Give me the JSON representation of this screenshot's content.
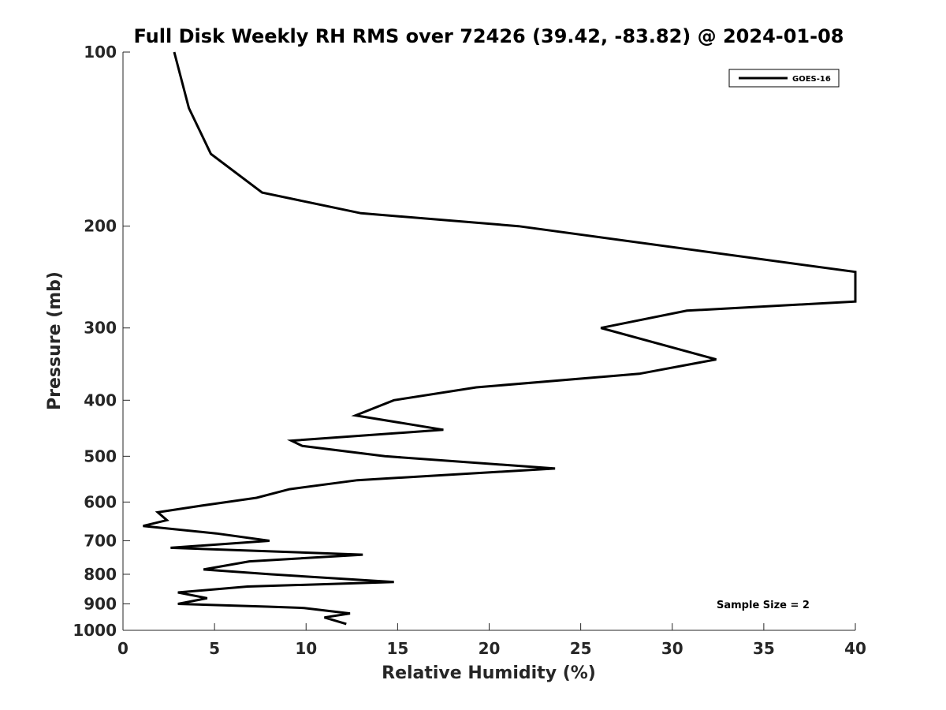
{
  "chart_data": {
    "type": "line",
    "title": "Full Disk Weekly RH RMS over 72426 (39.42, -83.82) @ 2024-01-08",
    "xlabel": "Relative Humidity (%)",
    "ylabel": "Pressure (mb)",
    "xlim": [
      0,
      40
    ],
    "ylim": [
      100,
      1000
    ],
    "y_scale": "log",
    "y_inverted": true,
    "grid": false,
    "legend_position": "top-right",
    "x_ticks": [
      0,
      5,
      10,
      15,
      20,
      25,
      30,
      35,
      40
    ],
    "y_ticks": [
      100,
      200,
      300,
      400,
      500,
      600,
      700,
      800,
      900,
      1000
    ],
    "annotation": "Sample Size = 2",
    "series": [
      {
        "name": "GOES-16",
        "color": "#000000",
        "points": [
          [
            2.8,
            100
          ],
          [
            3.6,
            125
          ],
          [
            4.8,
            150
          ],
          [
            7.6,
            175
          ],
          [
            13.0,
            190
          ],
          [
            21.6,
            200
          ],
          [
            40.0,
            240
          ],
          [
            40.0,
            270
          ],
          [
            30.8,
            280
          ],
          [
            26.1,
            300
          ],
          [
            32.4,
            340
          ],
          [
            28.2,
            360
          ],
          [
            19.3,
            380
          ],
          [
            14.8,
            400
          ],
          [
            12.7,
            425
          ],
          [
            17.5,
            450
          ],
          [
            9.2,
            470
          ],
          [
            9.8,
            480
          ],
          [
            14.3,
            500
          ],
          [
            23.6,
            525
          ],
          [
            12.8,
            550
          ],
          [
            9.1,
            570
          ],
          [
            7.3,
            590
          ],
          [
            4.1,
            610
          ],
          [
            1.9,
            625
          ],
          [
            2.4,
            645
          ],
          [
            1.1,
            660
          ],
          [
            5.1,
            680
          ],
          [
            8.0,
            700
          ],
          [
            2.6,
            720
          ],
          [
            13.1,
            740
          ],
          [
            6.9,
            760
          ],
          [
            4.4,
            785
          ],
          [
            8.1,
            800
          ],
          [
            14.8,
            825
          ],
          [
            6.8,
            840
          ],
          [
            3.0,
            860
          ],
          [
            4.6,
            880
          ],
          [
            3.0,
            900
          ],
          [
            7.9,
            910
          ],
          [
            9.9,
            915
          ],
          [
            12.4,
            935
          ],
          [
            11.0,
            950
          ],
          [
            12.2,
            975
          ]
        ]
      }
    ]
  }
}
